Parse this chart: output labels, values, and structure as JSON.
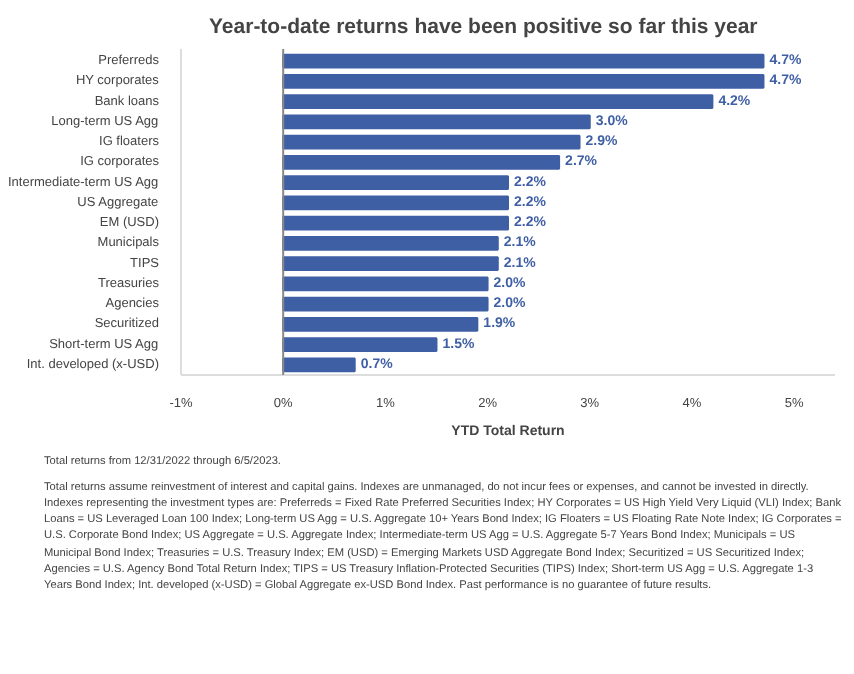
{
  "chart_data": {
    "type": "bar",
    "orientation": "horizontal",
    "title": "Year-to-date returns have been positive so far this year",
    "xlabel": "YTD Total Return",
    "categories": [
      "Preferreds",
      "HY corporates",
      "Bank loans",
      "Long-term US Agg",
      "IG floaters",
      "IG corporates",
      "Intermediate-term US Agg",
      "US Aggregate",
      "EM (USD)",
      "Municipals",
      "TIPS",
      "Treasuries",
      "Agencies",
      "Securitized",
      "Short-term US Agg",
      "Int. developed (x-USD)"
    ],
    "values": [
      4.7,
      4.7,
      4.2,
      3.0,
      2.9,
      2.7,
      2.2,
      2.2,
      2.2,
      2.1,
      2.1,
      2.0,
      2.0,
      1.9,
      1.5,
      0.7
    ],
    "value_labels": [
      "4.7%",
      "4.7%",
      "4.2%",
      "3.0%",
      "2.9%",
      "2.7%",
      "2.2%",
      "2.2%",
      "2.2%",
      "2.1%",
      "2.1%",
      "2.0%",
      "2.0%",
      "1.9%",
      "1.5%",
      "0.7%"
    ],
    "color": "#3f5fa5",
    "grid": false,
    "ref_lines": [
      {
        "axis": "x",
        "value": 0,
        "color": "#888888"
      }
    ],
    "xlim": [
      -1,
      5.4
    ],
    "xticks": [
      {
        "value": -1,
        "label": "-1%"
      },
      {
        "value": 0,
        "label": "0%"
      },
      {
        "value": 1,
        "label": "1%"
      },
      {
        "value": 2,
        "label": "2%"
      },
      {
        "value": 3,
        "label": "3%"
      },
      {
        "value": 4,
        "label": "4%"
      },
      {
        "value": 5,
        "label": "5%"
      }
    ],
    "annotations": [
      "Total returns from 12/31/2022 through 6/5/2023.",
      "Total returns assume reinvestment of interest and capital gains. Indexes are unmanaged, do not incur fees or expenses, and cannot be invested in directly. Indexes representing the investment types are: Preferreds = Fixed Rate Preferred Securities Index; HY Corporates = US High Yield Very Liquid (VLI) Index; Bank Loans = US Leveraged Loan 100 Index; Long-term US Agg = U.S. Aggregate 10+ Years Bond Index; IG Floaters = US Floating Rate Note Index; IG Corporates = U.S. Corporate Bond Index; US Aggregate = U.S. Aggregate Index; Intermediate-term US Agg = U.S. Aggregate 5-7 Years Bond Index; Municipals = US Municipal Bond Index; Treasuries = U.S. Treasury Index; EM (USD) = Emerging Markets USD Aggregate Bond Index; Securitized = US Securitized Index; Agencies = U.S. Agency Bond Total Return Index; TIPS = US Treasury Inflation-Protected Securities (TIPS) Index; Short-term US Agg = U.S. Aggregate 1-3 Years Bond Index; Int. developed (x-USD) = Global Aggregate ex-USD Bond Index. Past performance is no guarantee of future results."
    ]
  }
}
